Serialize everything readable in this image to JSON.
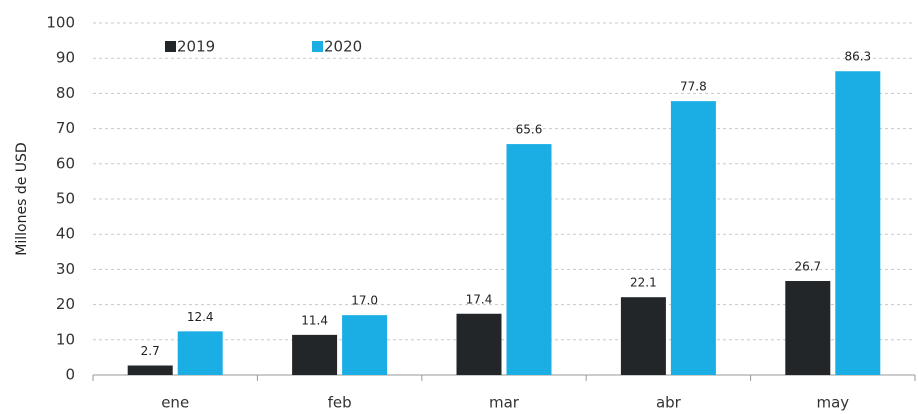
{
  "chart_data": {
    "type": "bar",
    "ylabel": "Millones de USD",
    "categories": [
      "ene",
      "feb",
      "mar",
      "abr",
      "may"
    ],
    "series": [
      {
        "name": "2019",
        "color": "#222629",
        "values": [
          2.7,
          11.4,
          17.4,
          22.1,
          26.7
        ],
        "value_labels": [
          "2.7",
          "11.4",
          "17.4",
          "22.1",
          "26.7"
        ]
      },
      {
        "name": "2020",
        "color": "#1aaee5",
        "values": [
          12.4,
          17.0,
          65.6,
          77.8,
          86.3
        ],
        "value_labels": [
          "12.4",
          "17.0",
          "65.6",
          "77.8",
          "86.3"
        ]
      }
    ],
    "ylim": [
      0,
      100
    ],
    "yticks": [
      0,
      10,
      20,
      30,
      40,
      50,
      60,
      70,
      80,
      90,
      100
    ],
    "grid": true,
    "legend": "upper left"
  }
}
